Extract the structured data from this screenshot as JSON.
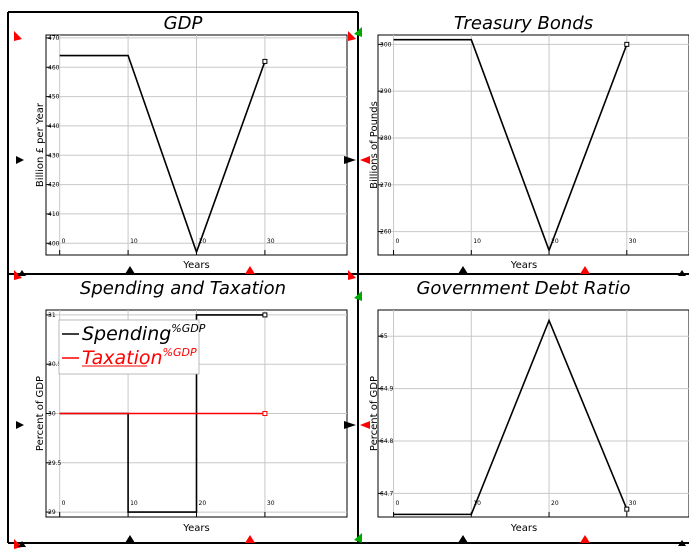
{
  "colors": {
    "line": "#000000",
    "taxation": "#ff0000",
    "grid": "#c8c8c8",
    "frame": "#000000",
    "marker_red": "#ff0000",
    "marker_green": "#00aa00"
  },
  "chart_data": [
    {
      "type": "line",
      "title": "GDP",
      "xlabel": "Years",
      "ylabel": "Billion £ per Year",
      "xlim": [
        -2,
        42
      ],
      "ylim": [
        396,
        471
      ],
      "xticks": [
        0,
        10,
        20,
        30
      ],
      "yticks": [
        400,
        410,
        420,
        430,
        440,
        450,
        460,
        470
      ],
      "grid": true,
      "series": [
        {
          "color": "#000000",
          "x": [
            0,
            10,
            20,
            30
          ],
          "y": [
            464,
            464,
            397,
            462
          ]
        }
      ]
    },
    {
      "type": "line",
      "title": "Treasury Bonds",
      "xlabel": "Years",
      "ylabel": "Billions of Pounds",
      "xlim": [
        -2,
        38
      ],
      "ylim": [
        255,
        302
      ],
      "xticks": [
        0,
        10,
        20,
        30
      ],
      "yticks": [
        260,
        270,
        280,
        290,
        300
      ],
      "grid": true,
      "series": [
        {
          "color": "#000000",
          "x": [
            0,
            10,
            20,
            30
          ],
          "y": [
            301,
            301,
            256,
            300
          ]
        }
      ]
    },
    {
      "type": "line",
      "title": "Spending and Taxation",
      "xlabel": "Years",
      "ylabel": "Percent of GDP",
      "xlim": [
        -2,
        42
      ],
      "ylim": [
        28.95,
        31.05
      ],
      "xticks": [
        0,
        10,
        20,
        30
      ],
      "yticks": [
        29,
        29.5,
        30,
        30.5,
        31
      ],
      "ytick_labels": [
        "29",
        "29.5",
        "30",
        "30.5",
        "31"
      ],
      "grid": true,
      "legend": "top-left",
      "series": [
        {
          "name": "Spending",
          "name_sup": "%GDP",
          "color": "#000000",
          "x": [
            0,
            10,
            10,
            20,
            20,
            30
          ],
          "y": [
            30,
            30,
            29,
            29,
            31,
            31
          ]
        },
        {
          "name": "Taxation",
          "name_sup": "%GDP",
          "color": "#ff0000",
          "x": [
            0,
            30
          ],
          "y": [
            30,
            30
          ]
        }
      ]
    },
    {
      "type": "line",
      "title": "Government Debt Ratio",
      "xlabel": "Years",
      "ylabel": "Percent of GDP",
      "xlim": [
        -2,
        38
      ],
      "ylim": [
        64.655,
        65.05
      ],
      "xticks": [
        0,
        10,
        20,
        30
      ],
      "yticks": [
        64.7,
        64.8,
        64.9,
        65
      ],
      "ytick_labels": [
        "64.7",
        "64.8",
        "64.9",
        "65"
      ],
      "grid": true,
      "series": [
        {
          "color": "#000000",
          "x": [
            0,
            10,
            20,
            30
          ],
          "y": [
            64.66,
            64.66,
            65.03,
            64.67
          ]
        }
      ]
    }
  ]
}
